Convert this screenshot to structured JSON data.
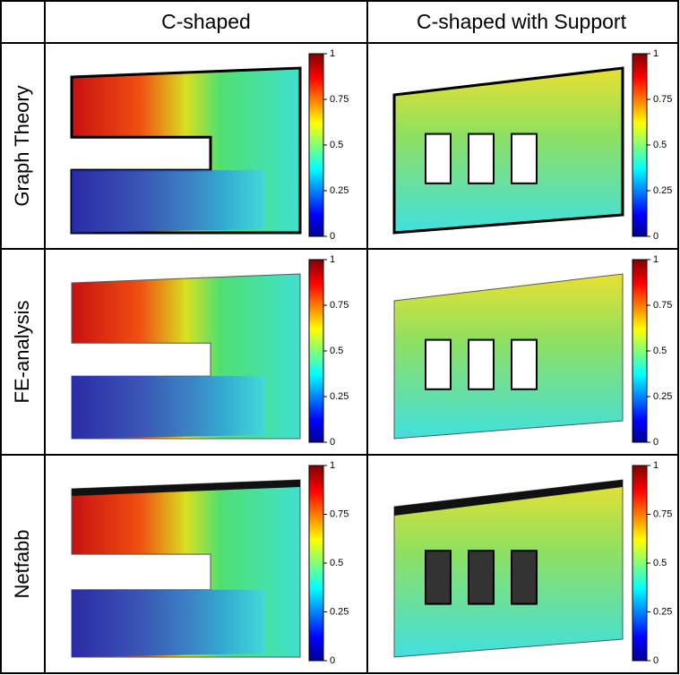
{
  "header": {
    "columns": [
      "C-shaped",
      "C-shaped with Support"
    ]
  },
  "rows": [
    "Graph Theory",
    "FE-analysis",
    "Netfabb"
  ],
  "colorbar": {
    "lim": [
      0,
      1
    ],
    "ticks": [
      0,
      0.25,
      0.5,
      0.75,
      1
    ]
  }
}
